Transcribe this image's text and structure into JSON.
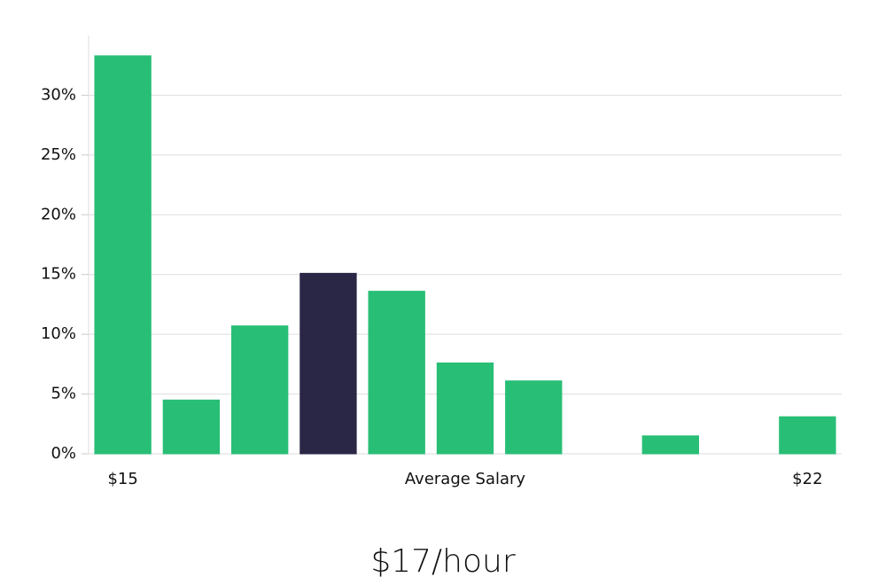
{
  "chart_data": {
    "type": "bar",
    "categories": [
      "$15",
      null,
      null,
      null,
      null,
      null,
      null,
      null,
      null,
      null,
      "$22"
    ],
    "values": [
      33.3,
      4.5,
      10.7,
      15.1,
      13.6,
      7.6,
      6.1,
      0,
      1.5,
      0,
      3.1
    ],
    "colors": [
      "#29be76",
      "#29be76",
      "#29be76",
      "#2a2746",
      "#29be76",
      "#29be76",
      "#29be76",
      "#29be76",
      "#29be76",
      "#29be76",
      "#29be76"
    ],
    "x_label": "Average Salary",
    "subtitle": "$17/hour",
    "ylim": [
      0,
      35
    ],
    "yticks": [
      {
        "value": 0,
        "label": "0%"
      },
      {
        "value": 5,
        "label": "5%"
      },
      {
        "value": 10,
        "label": "10%"
      },
      {
        "value": 15,
        "label": "15%"
      },
      {
        "value": 20,
        "label": "20%"
      },
      {
        "value": 25,
        "label": "25%"
      },
      {
        "value": 30,
        "label": "30%"
      }
    ],
    "grid": true
  }
}
